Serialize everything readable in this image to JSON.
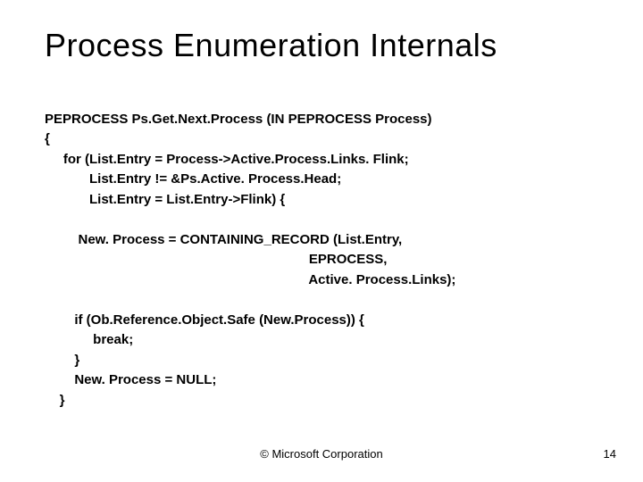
{
  "title": "Process Enumeration Internals",
  "code": {
    "l1": "PEPROCESS Ps.Get.Next.Process (IN PEPROCESS Process)",
    "l2": "{",
    "l3": "     for (List.Entry = Process->Active.Process.Links. Flink;",
    "l4": "            List.Entry != &Ps.Active. Process.Head;",
    "l5": "            List.Entry = List.Entry->Flink) {",
    "l6": "",
    "l7": "         New. Process = CONTAINING_RECORD (List.Entry,",
    "l8": "                                                                       EPROCESS,",
    "l9": "                                                                       Active. Process.Links);",
    "l10": "",
    "l11": "        if (Ob.Reference.Object.Safe (New.Process)) {",
    "l12": "             break;",
    "l13": "        }",
    "l14": "        New. Process = NULL;",
    "l15": "    }"
  },
  "footer": {
    "copyright": "© Microsoft Corporation",
    "page": "14"
  },
  "colors": {
    "background": "#ffffff",
    "text": "#000000"
  },
  "fontsizes": {
    "title": 36,
    "code": 15,
    "footer": 13
  }
}
